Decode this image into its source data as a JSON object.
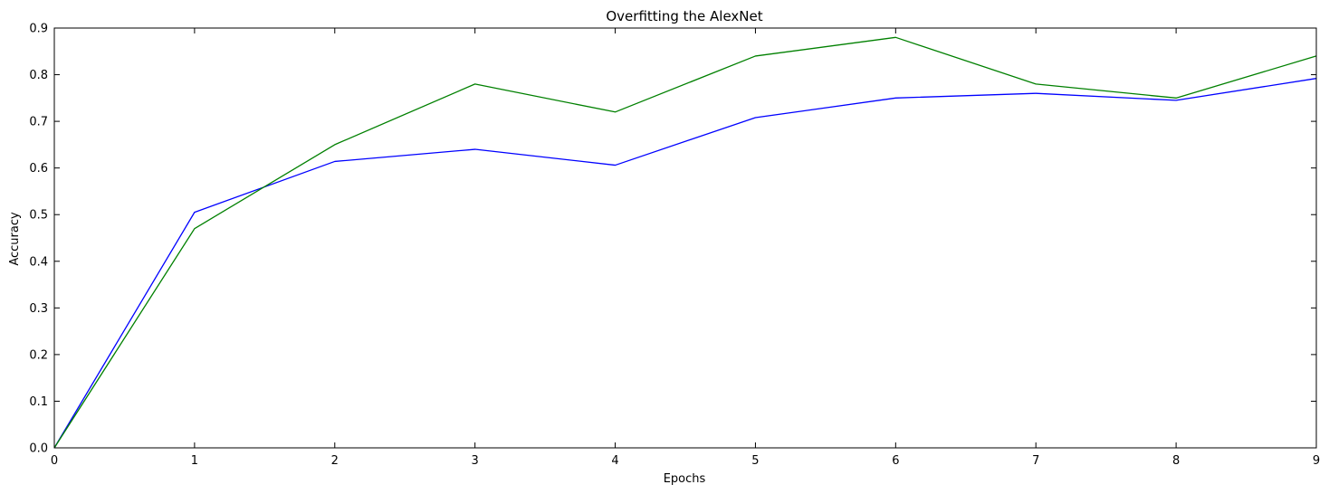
{
  "chart_data": {
    "type": "line",
    "title": "Overfitting the AlexNet",
    "xlabel": "Epochs",
    "ylabel": "Accuracy",
    "xlim": [
      0,
      9
    ],
    "ylim": [
      0.0,
      0.9
    ],
    "x": [
      0,
      1,
      2,
      3,
      4,
      5,
      6,
      7,
      8,
      9
    ],
    "x_tick_labels": [
      "0",
      "1",
      "2",
      "3",
      "4",
      "5",
      "6",
      "7",
      "8",
      "9"
    ],
    "y_tick_labels": [
      "0.0",
      "0.1",
      "0.2",
      "0.3",
      "0.4",
      "0.5",
      "0.6",
      "0.7",
      "0.8",
      "0.9"
    ],
    "grid": false,
    "series": [
      {
        "color": "#0000ff",
        "values": [
          0.0,
          0.505,
          0.614,
          0.64,
          0.606,
          0.708,
          0.75,
          0.76,
          0.745,
          0.792
        ]
      },
      {
        "color": "#008000",
        "values": [
          0.0,
          0.47,
          0.65,
          0.78,
          0.72,
          0.84,
          0.88,
          0.78,
          0.75,
          0.84
        ]
      }
    ]
  }
}
